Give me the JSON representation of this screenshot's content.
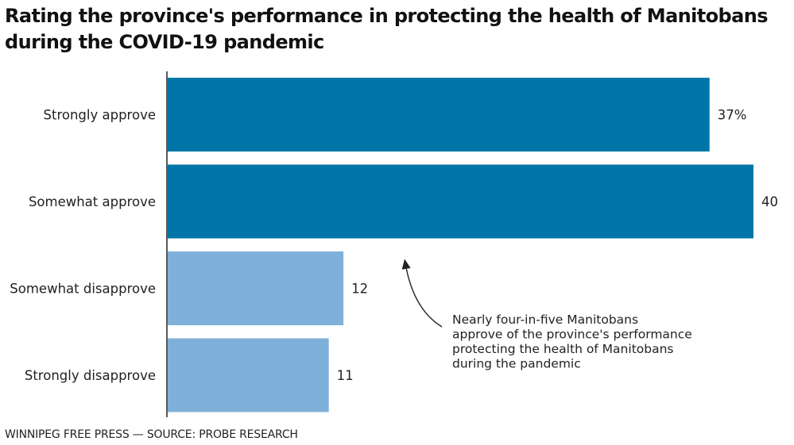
{
  "chart_data": {
    "type": "bar",
    "orientation": "horizontal",
    "title": "Rating the province's performance in protecting the health of Manitobans during the COVID-19 pandemic",
    "categories": [
      "Strongly approve",
      "Somewhat approve",
      "Somewhat disapprove",
      "Strongly disapprove"
    ],
    "values": [
      37,
      40,
      12,
      11
    ],
    "value_labels": [
      "37%",
      "40",
      "12",
      "11"
    ],
    "colors": [
      "#0076a8",
      "#0076a8",
      "#7fb0d9",
      "#7fb0d9"
    ],
    "xlim": [
      0,
      40
    ],
    "grid": false,
    "annotation": {
      "lines": [
        "Nearly four-in-five Manitobans",
        "approve of the province's performance",
        "protecting the health of Manitobans",
        "during the pandemic"
      ]
    }
  },
  "footer": "WINNIPEG FREE PRESS — SOURCE: PROBE RESEARCH"
}
